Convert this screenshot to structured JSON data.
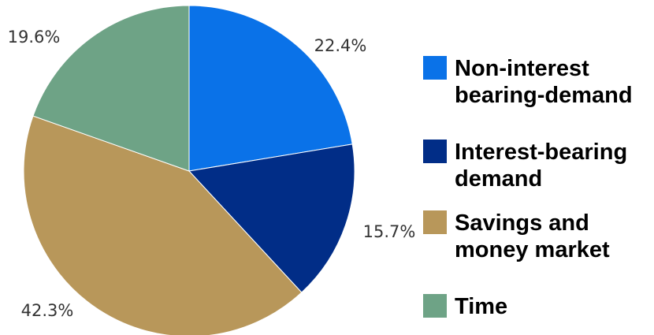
{
  "chart_data": {
    "type": "pie",
    "title": "",
    "slices": [
      {
        "label": "Non-interest bearing-demand",
        "legend_lines": [
          "Non-interest",
          "bearing-demand"
        ],
        "value": 22.4,
        "value_label": "22.4%",
        "color": "#0a72e8"
      },
      {
        "label": "Interest-bearing demand",
        "legend_lines": [
          "Interest-bearing",
          "demand"
        ],
        "value": 15.7,
        "value_label": "15.7%",
        "color": "#012d87"
      },
      {
        "label": "Savings and money market",
        "legend_lines": [
          "Savings and",
          "money market"
        ],
        "value": 42.3,
        "value_label": "42.3%",
        "color": "#b8975a"
      },
      {
        "label": "Time",
        "legend_lines": [
          "Time"
        ],
        "value": 19.6,
        "value_label": "19.6%",
        "color": "#6ea386"
      }
    ],
    "start_angle": "top",
    "direction": "clockwise",
    "legend_position": "right"
  }
}
